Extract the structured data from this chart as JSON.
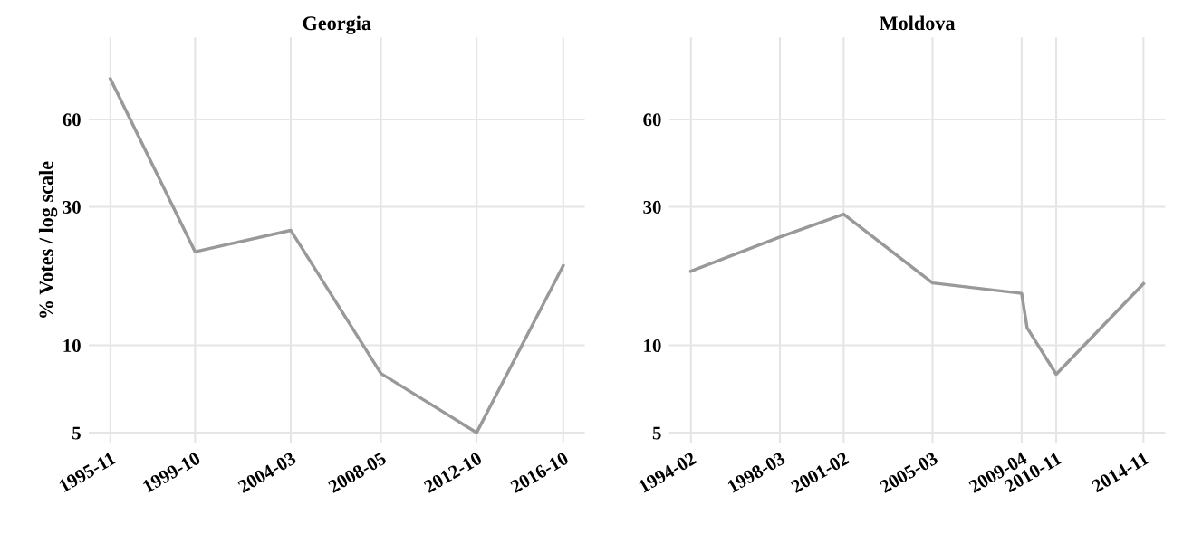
{
  "chart_data": [
    {
      "type": "line",
      "title": "Georgia",
      "ylabel": "% Votes / log scale",
      "log": "y",
      "grid": true,
      "series": [
        {
          "color": "#999999",
          "x": [
            "1995-11",
            "1999-10",
            "2004-03",
            "2008-05",
            "2012-10",
            "2016-10"
          ],
          "values": [
            82.8,
            21.0,
            24.9,
            8.0,
            5.0,
            18.8
          ]
        }
      ],
      "xlim": [
        "1994-11",
        "2017-10"
      ],
      "xticks": [
        "1995-11",
        "1999-10",
        "2004-03",
        "2008-05",
        "2012-10",
        "2016-10"
      ],
      "ylim": [
        4.6,
        115
      ],
      "yticks": [
        5,
        10,
        30,
        60
      ]
    },
    {
      "type": "line",
      "title": "Moldova",
      "log": "y",
      "grid": true,
      "series": [
        {
          "color": "#999999",
          "x": [
            "1994-02",
            "1998-03",
            "2001-02",
            "2005-03",
            "2009-04",
            "2009-07",
            "2010-11",
            "2014-11"
          ],
          "values": [
            18.0,
            23.6,
            28.3,
            16.4,
            15.1,
            11.5,
            7.95,
            16.3
          ]
        }
      ],
      "xlim": [
        "1993-02",
        "2015-11"
      ],
      "xticks": [
        "1994-02",
        "1998-03",
        "2001-02",
        "2005-03",
        "2009-04",
        "2010-11",
        "2014-11"
      ],
      "ylim": [
        4.6,
        115
      ],
      "yticks": [
        5,
        10,
        30,
        60
      ]
    }
  ]
}
